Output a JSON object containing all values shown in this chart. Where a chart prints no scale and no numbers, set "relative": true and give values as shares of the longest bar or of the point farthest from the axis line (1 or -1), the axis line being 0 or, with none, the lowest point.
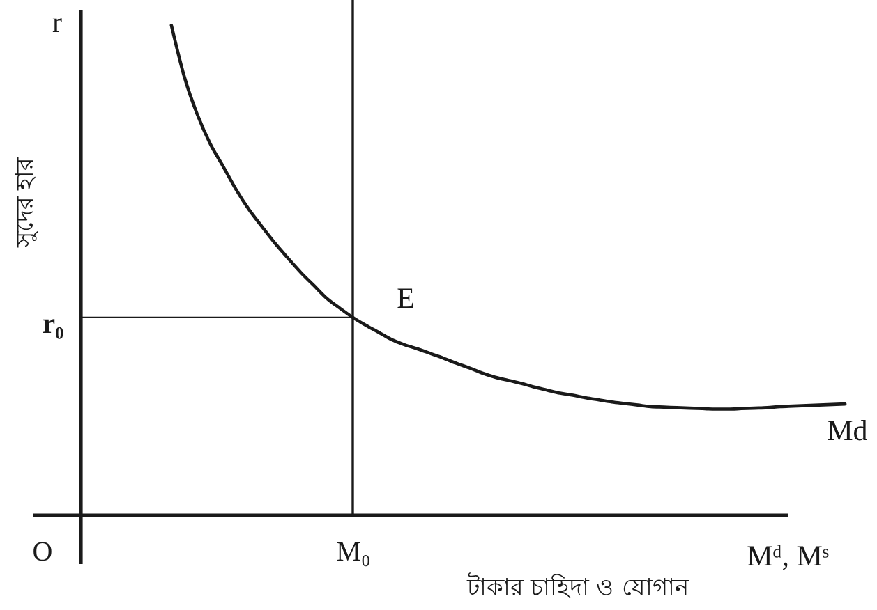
{
  "chart_data": {
    "type": "line",
    "relative": true,
    "xlabel": "টাকার চাহিদা ও যোগান",
    "ylabel": "সুদের হার",
    "categories": [
      "O",
      null,
      null,
      null,
      null,
      null,
      null,
      null,
      null,
      null,
      null,
      null,
      null,
      null,
      null,
      null,
      null,
      null,
      null,
      null,
      null,
      null,
      null,
      null,
      "M₀",
      null,
      null,
      null,
      null,
      null,
      null,
      null,
      null,
      null,
      null,
      null,
      null,
      null,
      null,
      null,
      null,
      null,
      null,
      null,
      null,
      null,
      null,
      null,
      null,
      null,
      null,
      null,
      null,
      null,
      null,
      null,
      null,
      null,
      null,
      null,
      null,
      null,
      null
    ],
    "series": [
      {
        "name": "Md",
        "color": "#1a1a1a",
        "values": [
          null,
          null,
          null,
          null,
          null,
          null,
          null,
          null,
          null,
          null,
          0.951,
          0.851,
          0.778,
          0.721,
          0.677,
          0.632,
          0.593,
          0.56,
          0.528,
          0.499,
          0.471,
          0.446,
          0.421,
          0.402,
          0.384,
          0.369,
          0.355,
          0.341,
          0.331,
          0.323,
          0.314,
          0.305,
          0.295,
          0.286,
          0.276,
          0.268,
          0.262,
          0.256,
          0.249,
          0.243,
          0.237,
          0.233,
          0.228,
          0.224,
          0.22,
          0.217,
          0.214,
          0.211,
          0.21,
          0.209,
          0.208,
          0.207,
          0.206,
          0.206,
          0.207,
          0.208,
          0.209,
          0.211,
          0.212,
          0.213,
          0.214,
          0.215,
          0.216
        ]
      },
      {
        "color": "#1a1a1a",
        "values": [
          null,
          null,
          null,
          0.384,
          0.384,
          0.384,
          0.384,
          0.384,
          0.384,
          0.384,
          0.384,
          0.384,
          0.384,
          0.384,
          0.384,
          0.384,
          0.384,
          0.384,
          0.384,
          0.384,
          0.384,
          0.384,
          0.384,
          0.384,
          0.384,
          null,
          null,
          null,
          null,
          null,
          null,
          null,
          null,
          null,
          null,
          null,
          null,
          null,
          null,
          null,
          null,
          null,
          null,
          null,
          null,
          null,
          null,
          null,
          null,
          null,
          null,
          null,
          null,
          null,
          null,
          null,
          null,
          null,
          null,
          null,
          null,
          null,
          null
        ]
      },
      {
        "color": "#1a1a1a",
        "x": [
          "M₀",
          "M₀"
        ],
        "values": [
          0,
          1
        ]
      }
    ],
    "annotations": [
      "r",
      "Mᵈ, Mˢ",
      "r₀",
      {
        "text": "E",
        "x": "M₀",
        "y": 0.384
      }
    ]
  }
}
